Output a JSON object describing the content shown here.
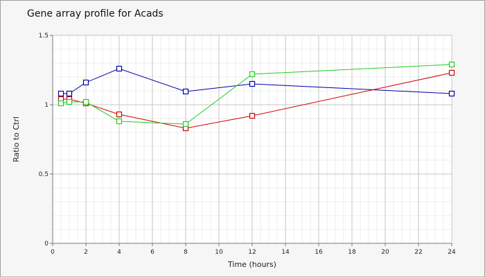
{
  "chart_data": {
    "type": "line",
    "title": "Gene array profile for Acads",
    "xlabel": "Time (hours)",
    "ylabel": "Ratio to Ctrl",
    "xlim": [
      0,
      24
    ],
    "ylim": [
      0,
      1.5
    ],
    "x_ticks": [
      0,
      2,
      4,
      6,
      8,
      10,
      12,
      14,
      16,
      18,
      20,
      22,
      24
    ],
    "y_ticks": [
      0,
      0.5,
      1,
      1.5
    ],
    "y_tick_labels": [
      "0",
      "0.5",
      "1",
      "1.5"
    ],
    "grid": true,
    "legend": "none",
    "marker": "square",
    "series": [
      {
        "color": "#0000aa",
        "x": [
          0.5,
          1,
          2,
          4,
          8,
          12,
          24
        ],
        "values": [
          1.08,
          1.08,
          1.16,
          1.26,
          1.095,
          1.15,
          1.08
        ]
      },
      {
        "color": "#cc0000",
        "x": [
          0.5,
          1,
          2,
          4,
          8,
          12,
          24
        ],
        "values": [
          1.04,
          1.04,
          1.01,
          0.93,
          0.83,
          0.92,
          1.23
        ]
      },
      {
        "color": "#22cc22",
        "x": [
          0.5,
          1,
          2,
          4,
          8,
          12,
          24
        ],
        "values": [
          1.01,
          1.02,
          1.02,
          0.88,
          0.86,
          1.22,
          1.29
        ]
      }
    ]
  }
}
